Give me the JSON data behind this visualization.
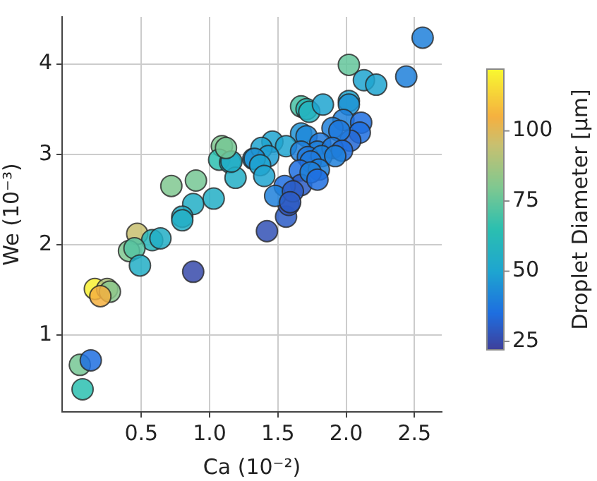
{
  "chart_data": {
    "type": "scatter",
    "xlabel": "Ca (10⁻²)",
    "ylabel": "We (10⁻³)",
    "clabel": "Droplet Diameter [μm]",
    "xlim": [
      -0.08,
      2.7
    ],
    "ylim": [
      0.15,
      4.52
    ],
    "xticks": [
      {
        "value": 0.5,
        "label": "0.5"
      },
      {
        "value": 1,
        "label": "1.0"
      },
      {
        "value": 1.5,
        "label": "1.5"
      },
      {
        "value": 2,
        "label": "2.0"
      },
      {
        "value": 2.5,
        "label": "2.5"
      }
    ],
    "yticks": [
      1,
      2,
      3,
      4
    ],
    "clim": [
      22,
      122
    ],
    "cticks": [
      25,
      50,
      75,
      100
    ],
    "grid": true,
    "marker": "circle",
    "x": [
      1.09,
      1.07,
      1.15,
      1.19,
      1.32,
      0.72,
      0.9,
      0.88,
      1.03,
      0.8,
      0.8,
      0.47,
      0.58,
      0.64,
      0.41,
      0.45,
      0.49,
      0.88,
      0.16,
      0.25,
      0.27,
      0.2,
      0.05,
      0.13,
      0.07,
      1.42,
      1.56,
      1.58,
      2.56,
      2.02,
      2.13,
      2.22,
      2.44,
      1.67,
      1.71,
      1.73,
      1.83,
      2.02,
      2.02,
      1.98,
      2.11,
      1.9,
      2.1,
      2.03,
      1.95,
      1.67,
      1.71,
      1.46,
      1.56,
      1.38,
      1.43,
      1.33,
      1.81,
      1.79,
      1.9,
      1.97,
      1.67,
      1.72,
      1.82,
      1.92,
      1.74,
      1.37,
      1.16,
      1.4,
      1.66,
      1.67,
      1.8,
      1.74,
      1.55,
      1.48,
      1.61,
      1.59,
      1.79,
      1.12
    ],
    "values": [
      3.09,
      2.94,
      2.91,
      2.74,
      2.95,
      2.65,
      2.71,
      2.45,
      2.51,
      2.31,
      2.27,
      2.12,
      2.05,
      2.07,
      1.93,
      1.96,
      1.77,
      1.7,
      1.51,
      1.51,
      1.48,
      1.43,
      0.67,
      0.72,
      0.4,
      2.15,
      2.31,
      2.44,
      4.29,
      3.99,
      3.82,
      3.77,
      3.86,
      3.53,
      3.5,
      3.47,
      3.55,
      3.59,
      3.55,
      3.38,
      3.35,
      3.29,
      3.24,
      3.15,
      3.26,
      3.23,
      3.2,
      3.14,
      3.09,
      3.07,
      2.98,
      2.95,
      3.12,
      3.03,
      3.07,
      3.04,
      3.03,
      2.97,
      2.98,
      2.98,
      2.92,
      2.88,
      2.92,
      2.76,
      2.82,
      2.66,
      2.83,
      2.8,
      2.65,
      2.54,
      2.59,
      2.47,
      2.72,
      3.07
    ],
    "cvalues": [
      80,
      65,
      55,
      55,
      45,
      80,
      78,
      55,
      55,
      55,
      55,
      95,
      60,
      55,
      80,
      72,
      55,
      25,
      120,
      90,
      82,
      105,
      78,
      35,
      65,
      27,
      30,
      28,
      40,
      75,
      50,
      50,
      40,
      70,
      62,
      58,
      50,
      50,
      45,
      40,
      35,
      40,
      35,
      33,
      38,
      45,
      42,
      50,
      50,
      50,
      48,
      45,
      38,
      40,
      38,
      35,
      40,
      38,
      40,
      40,
      38,
      50,
      55,
      50,
      35,
      30,
      40,
      40,
      35,
      40,
      30,
      30,
      35,
      78
    ]
  }
}
